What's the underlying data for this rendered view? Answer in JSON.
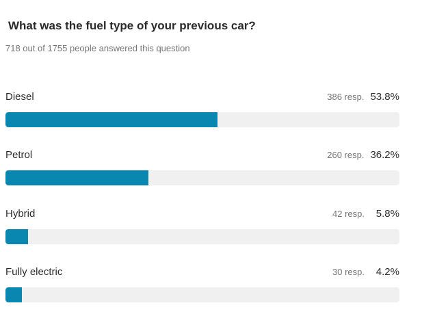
{
  "survey": {
    "question": "What was the fuel type of your previous car?",
    "summary": "718 out of 1755 people answered this question"
  },
  "options": [
    {
      "label": "Diesel",
      "responses": "386 resp.",
      "percent": "53.8%",
      "fraction": 0.538
    },
    {
      "label": "Petrol",
      "responses": "260 resp.",
      "percent": "36.2%",
      "fraction": 0.362
    },
    {
      "label": "Hybrid",
      "responses": "42 resp.",
      "percent": "5.8%",
      "fraction": 0.058
    },
    {
      "label": "Fully electric",
      "responses": "30 resp.",
      "percent": "4.2%",
      "fraction": 0.042
    }
  ],
  "colors": {
    "bar_fill": "#0a87b0",
    "bar_track": "#f0f0f0"
  }
}
